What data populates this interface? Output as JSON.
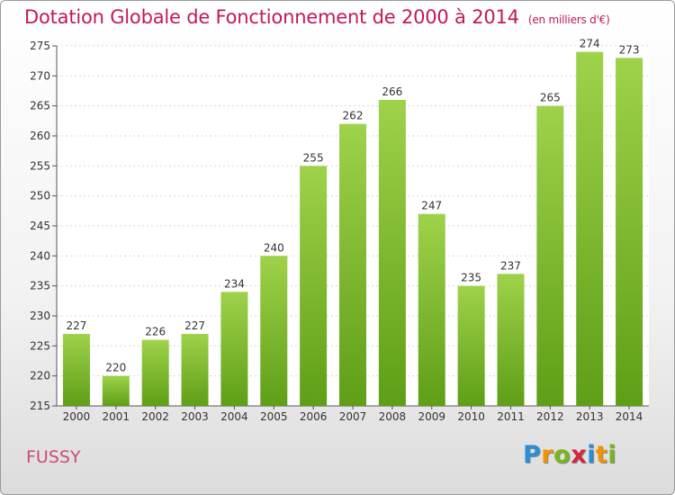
{
  "header": {
    "title": "Dotation Globale de Fonctionnement de 2000 à 2014",
    "subtitle": "(en milliers d'€)"
  },
  "commune": "FUSSY",
  "logo": {
    "letters": [
      "P",
      "r",
      "o",
      "x",
      "i",
      "t",
      "i"
    ],
    "colors": [
      "#2b8ed6",
      "#f29400",
      "#7ab51d",
      "#d7263d",
      "#2b8ed6",
      "#f29400",
      "#7ab51d"
    ]
  },
  "chart_data": {
    "type": "bar",
    "categories": [
      "2000",
      "2001",
      "2002",
      "2003",
      "2004",
      "2005",
      "2006",
      "2007",
      "2008",
      "2009",
      "2010",
      "2011",
      "2012",
      "2013",
      "2014"
    ],
    "values": [
      227,
      220,
      226,
      227,
      234,
      240,
      255,
      262,
      266,
      247,
      235,
      237,
      265,
      274,
      273
    ],
    "title": "Dotation Globale de Fonctionnement de 2000 à 2014",
    "ylim": [
      215,
      275
    ],
    "yticks": [
      215,
      220,
      225,
      230,
      235,
      240,
      245,
      250,
      255,
      260,
      265,
      270,
      275
    ],
    "grid": true,
    "bar_color_top": "#9ed24a",
    "bar_color_bottom": "#5f9e17"
  }
}
